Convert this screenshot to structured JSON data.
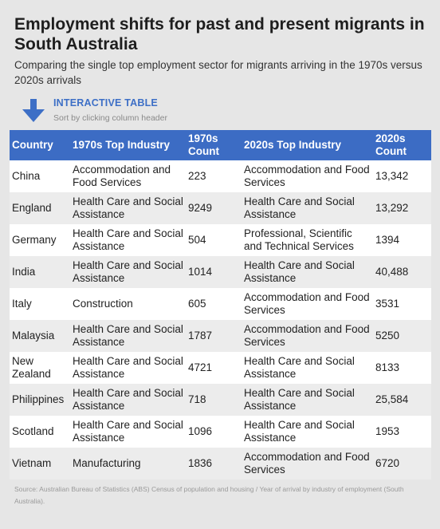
{
  "header": {
    "title": "Employment shifts for past and present migrants in South Australia",
    "subtitle": "Comparing the single top employment sector for migrants arriving in the 1970s versus 2020s arrivals",
    "interactive_label": "INTERACTIVE TABLE",
    "sort_hint": "Sort by clicking column header"
  },
  "table": {
    "columns": [
      "Country",
      "1970s Top Industry",
      "1970s Count",
      "2020s Top Industry",
      "2020s Count"
    ],
    "rows": [
      [
        "China",
        "Accommodation and Food Services",
        "223",
        "Accommodation and Food Services",
        "13,342"
      ],
      [
        "England",
        "Health Care and Social Assistance",
        "9249",
        "Health Care and Social Assistance",
        "13,292"
      ],
      [
        "Germany",
        "Health Care and Social Assistance",
        "504",
        "Professional, Scientific and Technical Services",
        "1394"
      ],
      [
        "India",
        "Health Care and Social Assistance",
        "1014",
        "Health Care and Social Assistance",
        "40,488"
      ],
      [
        "Italy",
        "Construction",
        "605",
        "Accommodation and Food Services",
        "3531"
      ],
      [
        "Malaysia",
        "Health Care and Social Assistance",
        "1787",
        "Accommodation and Food Services",
        "5250"
      ],
      [
        "New Zealand",
        "Health Care and Social Assistance",
        "4721",
        "Health Care and Social Assistance",
        "8133"
      ],
      [
        "Philippines",
        "Health Care and Social Assistance",
        "718",
        "Health Care and Social Assistance",
        "25,584"
      ],
      [
        "Scotland",
        "Health Care and Social Assistance",
        "1096",
        "Health Care and Social Assistance",
        "1953"
      ],
      [
        "Vietnam",
        "Manufacturing",
        "1836",
        "Accommodation and Food Services",
        "6720"
      ]
    ]
  },
  "footer": {
    "source": "Source: Australian Bureau of Statistics (ABS) Census of population and housing / Year of arrival by industry of employment (South Australia)."
  }
}
